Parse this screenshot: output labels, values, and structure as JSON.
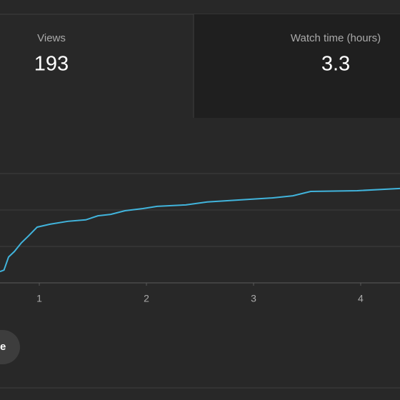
{
  "cards": [
    {
      "label": "Views",
      "value": "193"
    },
    {
      "label": "Watch time (hours)",
      "value": "3.3"
    }
  ],
  "chart_data": {
    "type": "line",
    "x": [
      0.633,
      0.67,
      0.713,
      0.767,
      0.833,
      0.9,
      0.98,
      1.1,
      1.267,
      1.433,
      1.547,
      1.667,
      1.8,
      1.967,
      2.1,
      2.367,
      2.567,
      2.833,
      3.167,
      3.367,
      3.533,
      3.967,
      4.367
    ],
    "series": [
      {
        "color": "#41b4dc",
        "values": [
          0.31,
          0.35,
          0.71,
          0.86,
          1.1,
          1.29,
          1.53,
          1.61,
          1.69,
          1.73,
          1.84,
          1.88,
          1.98,
          2.04,
          2.1,
          2.14,
          2.22,
          2.27,
          2.33,
          2.39,
          2.51,
          2.53,
          2.59
        ]
      }
    ],
    "xlim": [
      0.633,
      4.367
    ],
    "xticks": [
      1,
      2,
      3,
      4
    ],
    "ylim": [
      0,
      3
    ],
    "yticks": [
      0,
      1,
      2,
      3
    ],
    "grid": true
  },
  "button": {
    "label": "e"
  }
}
